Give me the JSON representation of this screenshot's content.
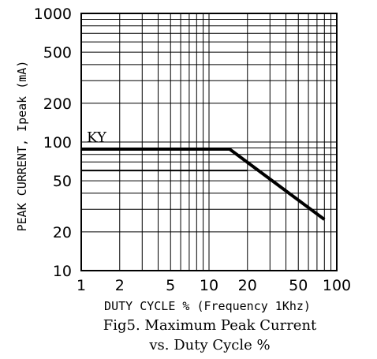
{
  "chart_data": {
    "type": "line",
    "title": "",
    "xlabel": "DUTY CYCLE % (Frequency 1Khz)",
    "ylabel": "PEAK CURRENT, Ipeak (mA)",
    "xscale": "log",
    "yscale": "log",
    "xlim": [
      1,
      100
    ],
    "ylim": [
      10,
      1000
    ],
    "grid": true,
    "x_tick_labels": [
      "1",
      "2",
      "5",
      "10",
      "20",
      "50",
      "100"
    ],
    "x_tick_values": [
      1,
      2,
      5,
      10,
      20,
      50,
      100
    ],
    "y_tick_labels": [
      "1000",
      "500",
      "200",
      "100",
      "50",
      "20",
      "10"
    ],
    "y_tick_values": [
      1000,
      500,
      200,
      100,
      50,
      20,
      10
    ],
    "series": [
      {
        "name": "KY",
        "x": [
          1,
          14.5,
          80
        ],
        "y": [
          88,
          88,
          25
        ]
      },
      {
        "name": "",
        "x": [
          1,
          20
        ],
        "y": [
          60,
          60
        ]
      }
    ],
    "caption_line1": "Fig5. Maximum Peak Current",
    "caption_line2": "vs. Duty Cycle %",
    "colors": {
      "line": "#000000",
      "grid": "#000000",
      "background": "#ffffff"
    }
  }
}
